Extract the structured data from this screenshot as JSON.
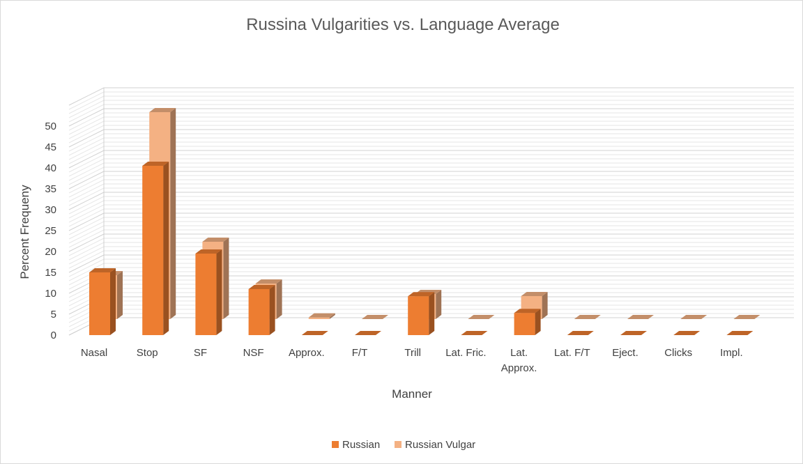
{
  "chart_data": {
    "type": "bar",
    "title": "Russina Vulgarities vs. Language Average",
    "xlabel": "Manner",
    "ylabel": "Percent Frequeny",
    "categories": [
      "Nasal",
      "Stop",
      "SF",
      "NSF",
      "Approx.",
      "F/T",
      "Trill",
      "Lat. Fric.",
      "Lat. Approx.",
      "Lat. F/T",
      "Eject.",
      "Clicks",
      "Impl."
    ],
    "series": [
      {
        "name": "Russian",
        "values": [
          15,
          40.5,
          19.5,
          11,
          0,
          0,
          9.3,
          0,
          5.3,
          0,
          0,
          0,
          0
        ],
        "color": "#ed7d31"
      },
      {
        "name": "Russian Vulgar",
        "values": [
          10.5,
          49.5,
          18.5,
          8.5,
          0.4,
          0,
          6,
          0,
          5.5,
          0,
          0,
          0,
          0
        ],
        "color": "#f4b183"
      }
    ],
    "yticks": [
      0,
      5,
      10,
      15,
      20,
      25,
      30,
      35,
      40,
      45,
      50
    ],
    "ylim": [
      0,
      55
    ],
    "grid": true,
    "legend": "bottom"
  }
}
